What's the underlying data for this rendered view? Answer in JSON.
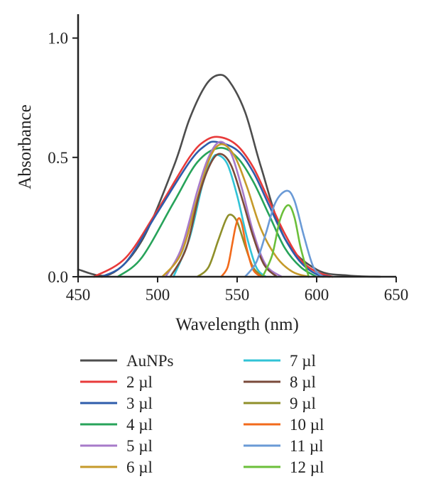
{
  "chart_data": {
    "type": "line",
    "title": "",
    "xlabel": "Wavelength (nm)",
    "ylabel": "Absorbance",
    "xlim": [
      450,
      650
    ],
    "ylim": [
      0,
      1.1
    ],
    "x_ticks": [
      450,
      500,
      550,
      600,
      650
    ],
    "x_tick_labels": [
      "450",
      "500",
      "550",
      "600",
      "650"
    ],
    "y_ticks": [
      0.0,
      0.5,
      1.0
    ],
    "y_tick_labels": [
      "0.0",
      "0.5",
      "1.0"
    ],
    "grid": false,
    "legend_position": "bottom",
    "series": [
      {
        "name": "AuNPs",
        "color": "#4d4d4d",
        "peak_x": 538,
        "peak_y": 0.845,
        "x": [
          450,
          470,
          490,
          510,
          520,
          530,
          538,
          545,
          555,
          565,
          580,
          600,
          620,
          640
        ],
        "y": [
          0.03,
          0.01,
          0.15,
          0.46,
          0.66,
          0.8,
          0.845,
          0.82,
          0.69,
          0.46,
          0.16,
          0.03,
          0.005,
          0.0
        ]
      },
      {
        "name": "2 µl",
        "color": "#e83a3a",
        "peak_x": 539,
        "peak_y": 0.585,
        "x": [
          460,
          480,
          500,
          520,
          530,
          539,
          550,
          560,
          570,
          580,
          590,
          600,
          610
        ],
        "y": [
          0.0,
          0.08,
          0.28,
          0.5,
          0.57,
          0.585,
          0.55,
          0.46,
          0.32,
          0.18,
          0.07,
          0.02,
          0.0
        ]
      },
      {
        "name": "3 µl",
        "color": "#2e5cab",
        "peak_x": 537,
        "peak_y": 0.565,
        "x": [
          465,
          480,
          500,
          520,
          530,
          537,
          550,
          560,
          570,
          580,
          590,
          600,
          608
        ],
        "y": [
          0.0,
          0.06,
          0.27,
          0.48,
          0.55,
          0.565,
          0.53,
          0.44,
          0.3,
          0.16,
          0.06,
          0.01,
          0.0
        ]
      },
      {
        "name": "4 µl",
        "color": "#27a35a",
        "peak_x": 539,
        "peak_y": 0.54,
        "x": [
          475,
          490,
          510,
          525,
          539,
          550,
          560,
          570,
          580,
          590,
          600
        ],
        "y": [
          0.0,
          0.08,
          0.31,
          0.48,
          0.54,
          0.5,
          0.4,
          0.26,
          0.12,
          0.04,
          0.0
        ]
      },
      {
        "name": "5 µl",
        "color": "#a77ac9",
        "peak_x": 539,
        "peak_y": 0.565,
        "x": [
          505,
          515,
          525,
          532,
          539,
          546,
          553,
          560,
          568,
          578
        ],
        "y": [
          0.0,
          0.12,
          0.36,
          0.5,
          0.565,
          0.52,
          0.37,
          0.19,
          0.05,
          0.0
        ]
      },
      {
        "name": "6 µl",
        "color": "#c59a2a",
        "peak_x": 540,
        "peak_y": 0.555,
        "x": [
          503,
          515,
          525,
          533,
          540,
          548,
          556,
          565,
          575,
          585,
          595
        ],
        "y": [
          0.0,
          0.1,
          0.33,
          0.5,
          0.555,
          0.51,
          0.38,
          0.2,
          0.08,
          0.02,
          0.0
        ]
      },
      {
        "name": "7 µl",
        "color": "#31c3d6",
        "peak_x": 538,
        "peak_y": 0.51,
        "x": [
          510,
          520,
          528,
          534,
          538,
          544,
          550,
          556,
          562,
          568
        ],
        "y": [
          0.0,
          0.16,
          0.38,
          0.49,
          0.51,
          0.47,
          0.34,
          0.17,
          0.04,
          0.0
        ]
      },
      {
        "name": "8 µl",
        "color": "#7a4a3a",
        "peak_x": 539,
        "peak_y": 0.515,
        "x": [
          508,
          518,
          526,
          533,
          539,
          546,
          553,
          560,
          567,
          575
        ],
        "y": [
          0.0,
          0.12,
          0.34,
          0.47,
          0.515,
          0.47,
          0.33,
          0.17,
          0.05,
          0.0
        ]
      },
      {
        "name": "9 µl",
        "color": "#8f8f2a",
        "peak_x": 546,
        "peak_y": 0.26,
        "x": [
          525,
          532,
          538,
          543,
          546,
          550,
          555,
          560,
          566
        ],
        "y": [
          0.0,
          0.04,
          0.15,
          0.24,
          0.26,
          0.23,
          0.13,
          0.04,
          0.0
        ]
      },
      {
        "name": "10 µl",
        "color": "#f26a1b",
        "peak_x": 551,
        "peak_y": 0.245,
        "x": [
          540,
          544,
          547,
          549,
          551,
          553,
          556,
          560,
          565
        ],
        "y": [
          0.0,
          0.04,
          0.14,
          0.21,
          0.245,
          0.22,
          0.12,
          0.03,
          0.0
        ]
      },
      {
        "name": "11 µl",
        "color": "#6a9ad6",
        "peak_x": 581,
        "peak_y": 0.36,
        "x": [
          555,
          562,
          568,
          574,
          581,
          586,
          592,
          598,
          604
        ],
        "y": [
          0.0,
          0.06,
          0.18,
          0.31,
          0.36,
          0.32,
          0.17,
          0.04,
          0.0
        ]
      },
      {
        "name": "12 µl",
        "color": "#6bbf3a",
        "peak_x": 582,
        "peak_y": 0.3,
        "x": [
          566,
          572,
          577,
          582,
          586,
          590,
          595
        ],
        "y": [
          0.0,
          0.09,
          0.24,
          0.3,
          0.25,
          0.12,
          0.0
        ]
      }
    ]
  }
}
